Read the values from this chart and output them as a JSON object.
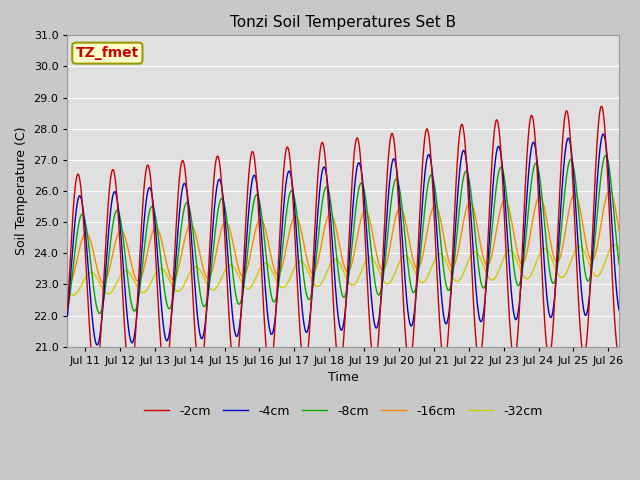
{
  "title": "Tonzi Soil Temperatures Set B",
  "xlabel": "Time",
  "ylabel": "Soil Temperature (C)",
  "ylim": [
    21.0,
    31.0
  ],
  "yticks": [
    21.0,
    22.0,
    23.0,
    24.0,
    25.0,
    26.0,
    27.0,
    28.0,
    29.0,
    30.0,
    31.0
  ],
  "xlim_start": 10.5,
  "xlim_end": 26.3,
  "xtick_days": [
    11,
    12,
    13,
    14,
    15,
    16,
    17,
    18,
    19,
    20,
    21,
    22,
    23,
    24,
    25,
    26
  ],
  "xtick_labels": [
    "Jul 11",
    "Jul 12",
    "Jul 13",
    "Jul 14",
    "Jul 15",
    "Jul 16",
    "Jul 17",
    "Jul 18",
    "Jul 19",
    "Jul 20",
    "Jul 21",
    "Jul 22",
    "Jul 23",
    "Jul 24",
    "Jul 25",
    "Jul 26"
  ],
  "series_order": [
    "-2cm",
    "-4cm",
    "-8cm",
    "-16cm",
    "-32cm"
  ],
  "series": {
    "-2cm": {
      "color": "#cc0000",
      "lw": 1.0
    },
    "-4cm": {
      "color": "#0000cc",
      "lw": 1.0
    },
    "-8cm": {
      "color": "#00aa00",
      "lw": 1.0
    },
    "-16cm": {
      "color": "#ff8800",
      "lw": 1.0
    },
    "-32cm": {
      "color": "#cccc00",
      "lw": 1.0
    }
  },
  "annotation_text": "TZ_fmet",
  "annotation_color": "#cc0000",
  "annotation_bbox_facecolor": "#ffffcc",
  "annotation_bbox_edgecolor": "#999900",
  "fig_bg_color": "#c8c8c8",
  "plot_bg_color": "#e0e0e0",
  "grid_color": "#ffffff",
  "title_fontsize": 11,
  "tick_fontsize": 8,
  "ylabel_fontsize": 9,
  "xlabel_fontsize": 9,
  "legend_fontsize": 9
}
